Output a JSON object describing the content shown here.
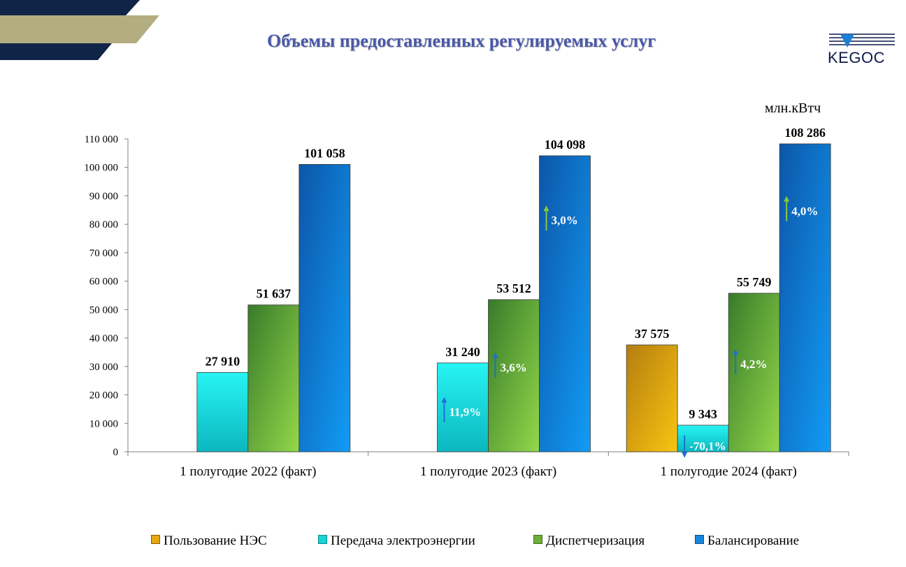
{
  "title": "Объемы предоставленных регулируемых услуг",
  "logo_text": "KEGOC",
  "unit": "млн.кВтч",
  "colors": {
    "nes": "#e6a712",
    "transmission": "#18d4d4",
    "dispatch": "#6fae3a",
    "balancing": "#1a86e0",
    "title": "#4a58a8",
    "arrow_up_green": "#8cc63f",
    "arrow_blue": "#1f6fd1"
  },
  "chart_data": {
    "type": "bar",
    "categories": [
      "1 полугодие 2022 (факт)",
      "1 полугодие 2023 (факт)",
      "1 полугодие 2024 (факт)"
    ],
    "ylim": [
      0,
      110000
    ],
    "yticks": [
      "0",
      "10 000",
      "20 000",
      "30 000",
      "40 000",
      "50 000",
      "60 000",
      "70 000",
      "80 000",
      "90 000",
      "100 000",
      "110 000"
    ],
    "series": [
      {
        "name": "Пользование НЭС",
        "key": "nes",
        "values": [
          null,
          null,
          37575
        ],
        "labels": [
          "",
          "",
          "37 575"
        ]
      },
      {
        "name": "Передача электроэнергии",
        "key": "transmission",
        "values": [
          27910,
          31240,
          9343
        ],
        "labels": [
          "27 910",
          "31 240",
          "9 343"
        ]
      },
      {
        "name": "Диспетчеризация",
        "key": "dispatch",
        "values": [
          51637,
          53512,
          55749
        ],
        "labels": [
          "51 637",
          "53 512",
          "55 749"
        ]
      },
      {
        "name": "Балансирование",
        "key": "balancing",
        "values": [
          101058,
          104098,
          108286
        ],
        "labels": [
          "101 058",
          "104 098",
          "108 286"
        ]
      }
    ],
    "annotations": [
      {
        "category": 1,
        "series": 1,
        "text": "11,9%",
        "direction": "up",
        "arrow": "arrow_blue"
      },
      {
        "category": 1,
        "series": 2,
        "text": "3,6%",
        "direction": "up",
        "arrow": "arrow_blue"
      },
      {
        "category": 1,
        "series": 3,
        "text": "3,0%",
        "direction": "up",
        "arrow": "arrow_up_green"
      },
      {
        "category": 2,
        "series": 1,
        "text": "-70,1%",
        "direction": "down",
        "arrow": "arrow_blue"
      },
      {
        "category": 2,
        "series": 2,
        "text": "4,2%",
        "direction": "up",
        "arrow": "arrow_blue"
      },
      {
        "category": 2,
        "series": 3,
        "text": "4,0%",
        "direction": "up",
        "arrow": "arrow_up_green"
      }
    ],
    "legend_position": "bottom",
    "grid": false
  }
}
